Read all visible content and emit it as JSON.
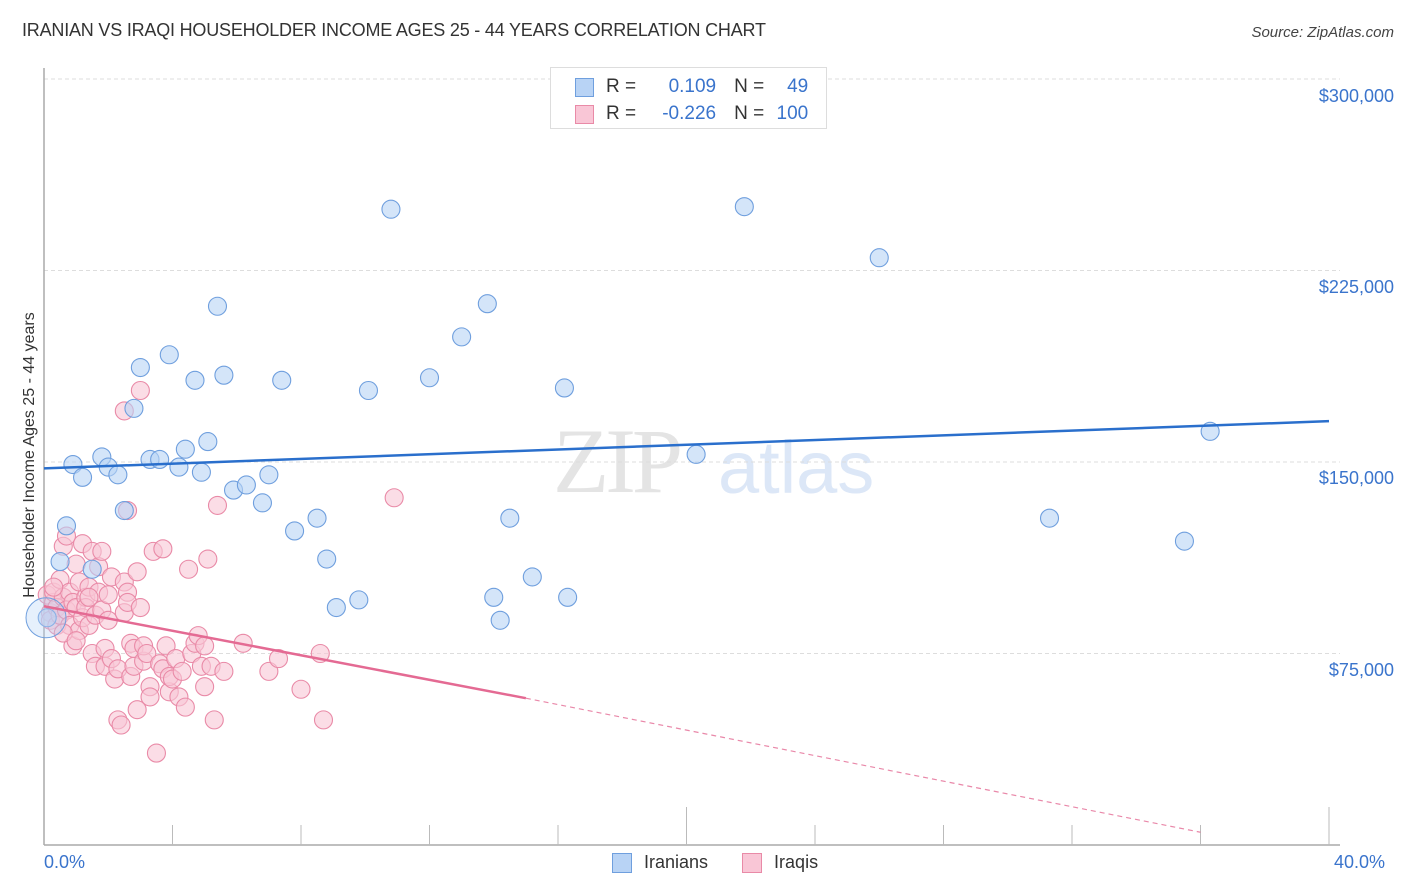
{
  "title": "IRANIAN VS IRAQI HOUSEHOLDER INCOME AGES 25 - 44 YEARS CORRELATION CHART",
  "source": "Source: ZipAtlas.com",
  "watermark": {
    "zip": "ZIP",
    "atlas": "atlas"
  },
  "legend_top": {
    "rows": [
      {
        "r_label": "R =",
        "r_value": "0.109",
        "n_label": "N =",
        "n_value": "49",
        "color": "#b8d3f5",
        "border": "#6f9fde"
      },
      {
        "r_label": "R =",
        "r_value": "-0.226",
        "n_label": "N =",
        "n_value": "100",
        "color": "#f9c6d6",
        "border": "#e98aa7"
      }
    ]
  },
  "legend_bottom": [
    {
      "label": "Iranians",
      "color": "#b8d3f5",
      "border": "#6f9fde"
    },
    {
      "label": "Iraqis",
      "color": "#f9c6d6",
      "border": "#e98aa7"
    }
  ],
  "axes": {
    "ylabel": "Householder Income Ages 25 - 44 years",
    "yticks": [
      "$300,000",
      "$225,000",
      "$150,000",
      "$75,000"
    ],
    "xticks": [
      "0.0%",
      "40.0%"
    ]
  },
  "chart_data": {
    "type": "scatter",
    "title": "IRANIAN VS IRAQI HOUSEHOLDER INCOME AGES 25 - 44 YEARS CORRELATION CHART",
    "xlabel": "",
    "ylabel": "Householder Income Ages 25 - 44 years",
    "xlim": [
      0,
      40
    ],
    "ylim": [
      0,
      310000
    ],
    "x_unit": "%",
    "grid": true,
    "legend_position": "top-center and bottom",
    "ytick_values": [
      75000,
      150000,
      225000,
      300000
    ],
    "xtick_labels": [
      "0.0%",
      "40.0%"
    ],
    "series": [
      {
        "name": "Iranians",
        "color": "#6f9fde",
        "fill": "#b8d3f5",
        "R": 0.109,
        "N": 49,
        "trendline": {
          "x": [
            0,
            40
          ],
          "y": [
            147500,
            166000
          ],
          "color": "#2a6fcc"
        },
        "points": [
          [
            0.1,
            89000
          ],
          [
            0.5,
            111000
          ],
          [
            0.7,
            125000
          ],
          [
            0.9,
            149000
          ],
          [
            1.2,
            144000
          ],
          [
            1.5,
            108000
          ],
          [
            1.8,
            152000
          ],
          [
            2.0,
            148000
          ],
          [
            2.3,
            145000
          ],
          [
            2.5,
            131000
          ],
          [
            2.8,
            171000
          ],
          [
            3.0,
            187000
          ],
          [
            3.3,
            151000
          ],
          [
            3.6,
            151000
          ],
          [
            3.9,
            192000
          ],
          [
            4.2,
            148000
          ],
          [
            4.4,
            155000
          ],
          [
            4.7,
            182000
          ],
          [
            4.9,
            146000
          ],
          [
            5.1,
            158000
          ],
          [
            5.4,
            211000
          ],
          [
            5.6,
            184000
          ],
          [
            5.9,
            139000
          ],
          [
            6.3,
            141000
          ],
          [
            6.8,
            134000
          ],
          [
            7.0,
            145000
          ],
          [
            7.4,
            182000
          ],
          [
            7.8,
            123000
          ],
          [
            8.5,
            128000
          ],
          [
            8.8,
            112000
          ],
          [
            9.1,
            93000
          ],
          [
            9.8,
            96000
          ],
          [
            10.1,
            178000
          ],
          [
            10.8,
            249000
          ],
          [
            12.0,
            183000
          ],
          [
            13.0,
            199000
          ],
          [
            13.8,
            212000
          ],
          [
            14.0,
            97000
          ],
          [
            14.2,
            88000
          ],
          [
            14.5,
            128000
          ],
          [
            15.2,
            105000
          ],
          [
            16.2,
            179000
          ],
          [
            16.3,
            97000
          ],
          [
            20.3,
            153000
          ],
          [
            21.8,
            250000
          ],
          [
            26.0,
            230000
          ],
          [
            31.3,
            128000
          ],
          [
            35.5,
            119000
          ],
          [
            36.3,
            162000
          ]
        ]
      },
      {
        "name": "Iraqis",
        "color": "#e98aa7",
        "fill": "#f9c6d6",
        "R": -0.226,
        "N": 100,
        "trendline": {
          "x": [
            0,
            15
          ],
          "y": [
            93500,
            57500
          ],
          "dashed_extension": {
            "x": [
              15,
              36
            ],
            "y": [
              57500,
              5000
            ]
          },
          "color": "#e46a93"
        },
        "points": [
          [
            0.1,
            98000
          ],
          [
            0.2,
            91000
          ],
          [
            0.2,
            88000
          ],
          [
            0.3,
            95000
          ],
          [
            0.3,
            99000
          ],
          [
            0.4,
            93000
          ],
          [
            0.4,
            86000
          ],
          [
            0.5,
            104000
          ],
          [
            0.5,
            90000
          ],
          [
            0.6,
            97000
          ],
          [
            0.6,
            117000
          ],
          [
            0.7,
            92000
          ],
          [
            0.7,
            121000
          ],
          [
            0.8,
            99000
          ],
          [
            0.8,
            86000
          ],
          [
            0.9,
            78000
          ],
          [
            0.9,
            95000
          ],
          [
            1.0,
            93000
          ],
          [
            1.0,
            110000
          ],
          [
            1.1,
            103000
          ],
          [
            1.1,
            84000
          ],
          [
            1.2,
            89000
          ],
          [
            1.2,
            118000
          ],
          [
            1.3,
            97000
          ],
          [
            1.3,
            93000
          ],
          [
            1.4,
            101000
          ],
          [
            1.4,
            86000
          ],
          [
            1.5,
            115000
          ],
          [
            1.5,
            75000
          ],
          [
            1.6,
            90000
          ],
          [
            1.6,
            70000
          ],
          [
            1.7,
            99000
          ],
          [
            1.7,
            109000
          ],
          [
            1.8,
            92000
          ],
          [
            1.8,
            115000
          ],
          [
            1.9,
            77000
          ],
          [
            1.9,
            70000
          ],
          [
            2.0,
            98000
          ],
          [
            2.0,
            88000
          ],
          [
            2.1,
            73000
          ],
          [
            2.1,
            105000
          ],
          [
            2.2,
            65000
          ],
          [
            2.3,
            69000
          ],
          [
            2.3,
            49000
          ],
          [
            2.4,
            47000
          ],
          [
            2.5,
            91000
          ],
          [
            2.5,
            103000
          ],
          [
            2.6,
            99000
          ],
          [
            2.6,
            95000
          ],
          [
            2.7,
            79000
          ],
          [
            2.7,
            66000
          ],
          [
            2.8,
            70000
          ],
          [
            2.8,
            77000
          ],
          [
            2.9,
            107000
          ],
          [
            2.9,
            53000
          ],
          [
            3.0,
            93000
          ],
          [
            3.1,
            72000
          ],
          [
            3.1,
            78000
          ],
          [
            3.2,
            75000
          ],
          [
            3.3,
            62000
          ],
          [
            3.3,
            58000
          ],
          [
            3.4,
            115000
          ],
          [
            3.5,
            36000
          ],
          [
            3.6,
            71000
          ],
          [
            3.7,
            116000
          ],
          [
            3.7,
            69000
          ],
          [
            3.8,
            78000
          ],
          [
            3.9,
            60000
          ],
          [
            3.9,
            66000
          ],
          [
            4.0,
            65000
          ],
          [
            4.1,
            73000
          ],
          [
            4.2,
            58000
          ],
          [
            4.3,
            68000
          ],
          [
            4.4,
            54000
          ],
          [
            4.5,
            108000
          ],
          [
            4.6,
            75000
          ],
          [
            4.7,
            79000
          ],
          [
            4.8,
            82000
          ],
          [
            4.9,
            70000
          ],
          [
            5.0,
            78000
          ],
          [
            5.0,
            62000
          ],
          [
            5.1,
            112000
          ],
          [
            5.2,
            70000
          ],
          [
            5.3,
            49000
          ],
          [
            5.6,
            68000
          ],
          [
            6.2,
            79000
          ],
          [
            3.0,
            178000
          ],
          [
            2.5,
            170000
          ],
          [
            5.4,
            133000
          ],
          [
            2.6,
            131000
          ],
          [
            7.0,
            68000
          ],
          [
            7.3,
            73000
          ],
          [
            8.0,
            61000
          ],
          [
            8.6,
            75000
          ],
          [
            8.7,
            49000
          ],
          [
            10.9,
            136000
          ],
          [
            0.3,
            101000
          ],
          [
            0.6,
            83000
          ],
          [
            1.0,
            80000
          ],
          [
            1.4,
            97000
          ]
        ]
      }
    ]
  }
}
